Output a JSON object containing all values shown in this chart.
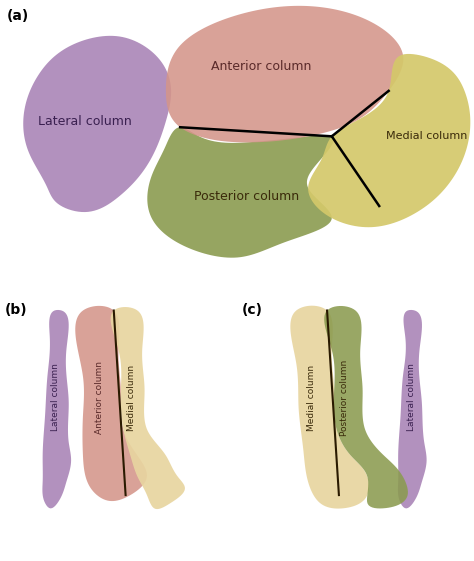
{
  "title_a": "(a)",
  "title_b": "(b)",
  "title_c": "(c)",
  "bg_color": "#ffffff",
  "colors": {
    "anterior": "#D4958A",
    "medial": "#D4C86A",
    "posterior": "#8B9B50",
    "lateral": "#A882B5",
    "bone_light": "#E8D5A0",
    "bone_med": "#C8A870",
    "divline": "#2A1A00"
  },
  "labels": {
    "anterior": "Anterior column",
    "medial": "Medial column",
    "posterior": "Posterior column",
    "lateral": "Lateral column"
  },
  "label_color_dark": "#3A2A0A",
  "label_color_anterior": "#5A2A2A",
  "label_color_lateral": "#3A2050",
  "font_size_panel": 10,
  "font_size_region": 9,
  "font_size_bone": 6.5
}
